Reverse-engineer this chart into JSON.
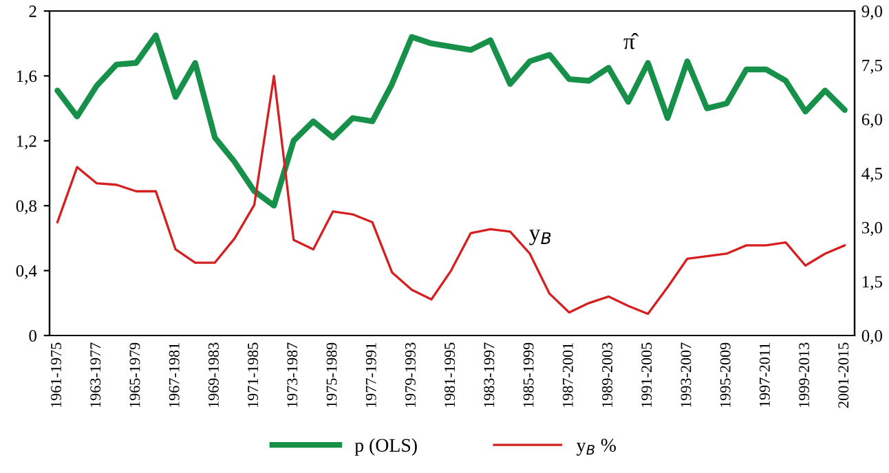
{
  "chart_data": {
    "type": "line",
    "categories": [
      "1961-1975",
      null,
      "1963-1977",
      null,
      "1965-1979",
      null,
      "1967-1981",
      null,
      "1969-1983",
      null,
      "1971-1985",
      null,
      "1973-1987",
      null,
      "1975-1989",
      null,
      "1977-1991",
      null,
      "1979-1993",
      null,
      "1981-1995",
      null,
      "1983-1997",
      null,
      "1985-1999",
      null,
      "1987-2001",
      null,
      "1989-2003",
      null,
      "1991-2005",
      null,
      "1993-2007",
      null,
      "1995-2009",
      null,
      "1997-2011",
      null,
      "1999-2013",
      null,
      "2001-2015"
    ],
    "series": [
      {
        "name": "p (OLS)",
        "color": "#17904a",
        "values": [
          1.51,
          1.35,
          1.54,
          1.67,
          1.68,
          1.85,
          1.47,
          1.68,
          1.22,
          1.07,
          0.89,
          0.8,
          1.2,
          1.32,
          1.22,
          1.34,
          1.32,
          1.55,
          1.84,
          1.8,
          1.78,
          1.76,
          1.82,
          1.55,
          1.69,
          1.73,
          1.58,
          1.57,
          1.65,
          1.44,
          1.68,
          1.34,
          1.69,
          1.4,
          1.43,
          1.64,
          1.64,
          1.57,
          1.38,
          1.51,
          1.39
        ]
      },
      {
        "name": "y$_{B}$ %",
        "color": "#d42020",
        "axis": "y2",
        "values": [
          3.14,
          4.67,
          4.22,
          4.18,
          4.0,
          4.0,
          2.39,
          2.02,
          2.02,
          2.69,
          3.62,
          7.2,
          2.65,
          2.39,
          3.44,
          3.36,
          3.14,
          1.75,
          1.27,
          1.0,
          1.8,
          2.84,
          2.95,
          2.88,
          2.27,
          1.16,
          0.64,
          0.9,
          1.08,
          0.82,
          0.6,
          1.34,
          2.13,
          2.2,
          2.27,
          2.5,
          2.5,
          2.58,
          1.94,
          2.27,
          2.5
        ]
      }
    ],
    "ylim": [
      0,
      2
    ],
    "yticks": [
      0,
      {
        "value": 0.4,
        "label": "0,4"
      },
      {
        "value": 0.8,
        "label": "0,8"
      },
      {
        "value": 1.2,
        "label": "1,2"
      },
      {
        "value": 1.6,
        "label": "1,6"
      },
      2
    ],
    "y2lim": [
      0,
      9
    ],
    "y2ticks": [
      {
        "value": 0,
        "label": "0,0"
      },
      {
        "value": 1.5,
        "label": "1,5"
      },
      {
        "value": 3,
        "label": "3,0"
      },
      {
        "value": 4.5,
        "label": "4,5"
      },
      {
        "value": 6,
        "label": "6,0"
      },
      {
        "value": 7.5,
        "label": "7,5"
      },
      {
        "value": 9,
        "label": "9,0"
      }
    ],
    "annotations": [
      "π̂",
      "y$_{B}$"
    ],
    "legend": "bottom",
    "grid": false,
    "marker": "none",
    "line_style": "solid"
  }
}
